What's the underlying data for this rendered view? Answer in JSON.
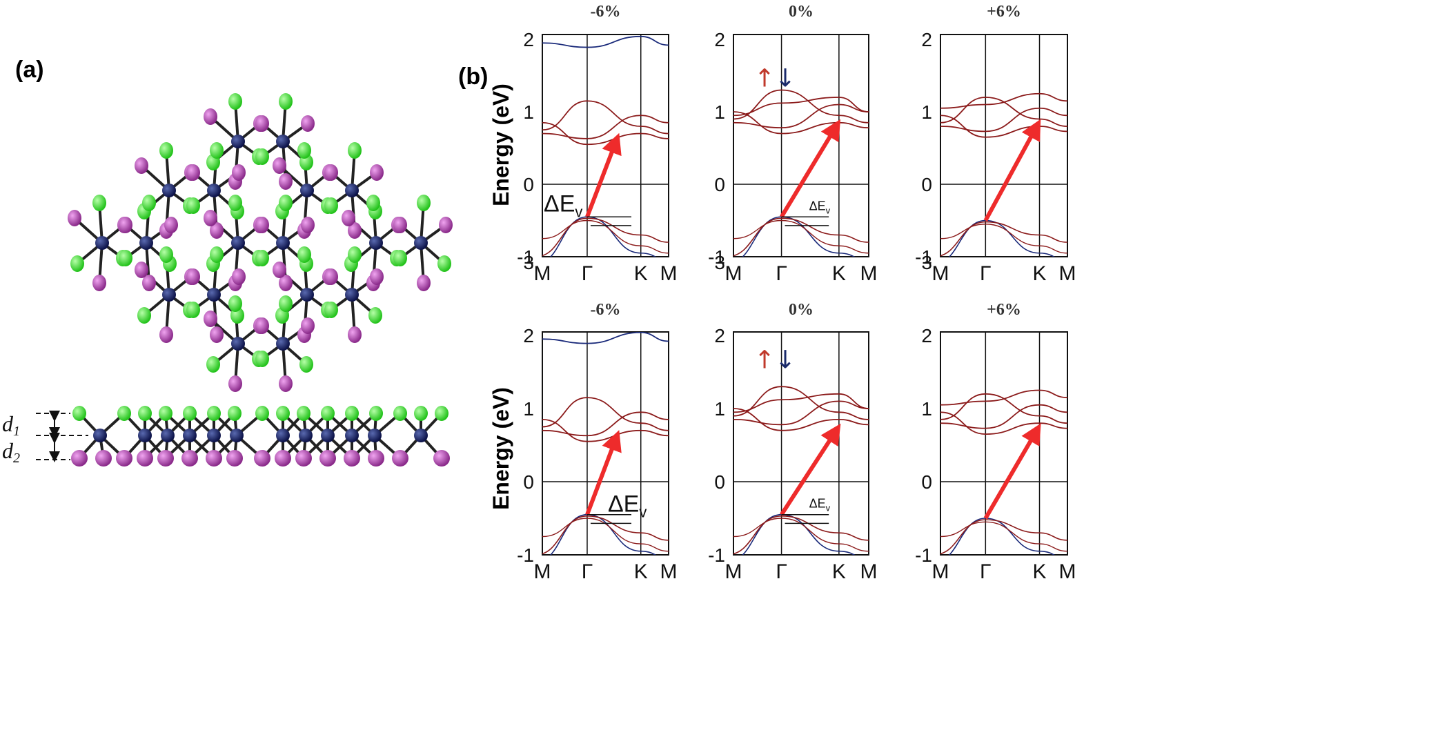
{
  "panel_a": {
    "label": "(a)",
    "d1_label": "d",
    "d1_sub": "1",
    "d2_label": "d",
    "d2_sub": "2",
    "colors": {
      "metal": "#141c5c",
      "top_halogen": "#3ee62e",
      "bottom_halogen": "#b84fb8",
      "bond": "#222222"
    }
  },
  "panel_b": {
    "label": "(b)",
    "ylabel": "Energy (eV)",
    "k_labels": [
      "M",
      "Γ",
      "K",
      "M"
    ],
    "y_ticks": [
      "3",
      "2",
      "1",
      "0",
      "-1"
    ],
    "delta_label": "ΔE",
    "delta_sub": "v",
    "spin_up_symbol": "↑",
    "spin_down_symbol": "↓",
    "colors": {
      "conduction": "#1a2a7a",
      "valence": "#8b1a1a",
      "arrow": "#ee2b2b",
      "spin_up": "#c0392b",
      "spin_down": "#1a2a6a"
    },
    "plots": [
      {
        "strain": "-6%",
        "row": 0,
        "col": 0
      },
      {
        "strain": "0%",
        "row": 0,
        "col": 1
      },
      {
        "strain": "+6%",
        "row": 0,
        "col": 2
      },
      {
        "strain": "-6%",
        "row": 1,
        "col": 0
      },
      {
        "strain": "0%",
        "row": 1,
        "col": 1
      },
      {
        "strain": "+6%",
        "row": 1,
        "col": 2
      }
    ]
  }
}
